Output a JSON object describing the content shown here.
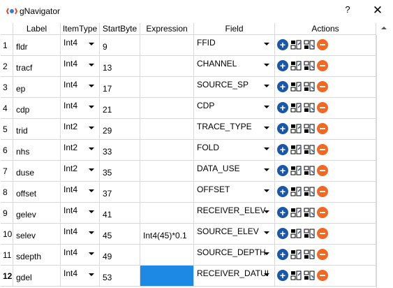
{
  "window": {
    "title": "gNavigator",
    "help_label": "?",
    "close_label": "✕"
  },
  "table": {
    "headers": [
      "Label",
      "ItemType",
      "StartByte",
      "Expression",
      "Field",
      "Actions"
    ],
    "rows": [
      {
        "num": "1",
        "label": "fldr",
        "type": "Int4",
        "start": "9",
        "expr": "",
        "field": "FFID"
      },
      {
        "num": "2",
        "label": "tracf",
        "type": "Int4",
        "start": "13",
        "expr": "",
        "field": "CHANNEL"
      },
      {
        "num": "3",
        "label": "ep",
        "type": "Int4",
        "start": "17",
        "expr": "",
        "field": "SOURCE_SP"
      },
      {
        "num": "4",
        "label": "cdp",
        "type": "Int4",
        "start": "21",
        "expr": "",
        "field": "CDP"
      },
      {
        "num": "5",
        "label": "trid",
        "type": "Int2",
        "start": "29",
        "expr": "",
        "field": "TRACE_TYPE"
      },
      {
        "num": "6",
        "label": "nhs",
        "type": "Int2",
        "start": "33",
        "expr": "",
        "field": "FOLD"
      },
      {
        "num": "7",
        "label": "duse",
        "type": "Int2",
        "start": "35",
        "expr": "",
        "field": "DATA_USE"
      },
      {
        "num": "8",
        "label": "offset",
        "type": "Int4",
        "start": "37",
        "expr": "",
        "field": "OFFSET"
      },
      {
        "num": "9",
        "label": "gelev",
        "type": "Int4",
        "start": "41",
        "expr": "",
        "field": "RECEIVER_ELEV"
      },
      {
        "num": "10",
        "label": "selev",
        "type": "Int4",
        "start": "45",
        "expr": "Int4(45)*0.1",
        "field": "SOURCE_ELEV"
      },
      {
        "num": "11",
        "label": "sdepth",
        "type": "Int4",
        "start": "49",
        "expr": "",
        "field": "SOURCE_DEPTH"
      },
      {
        "num": "12",
        "label": "gdel",
        "type": "Int4",
        "start": "53",
        "expr": "",
        "field": "RECEIVER_DATUI"
      }
    ]
  },
  "icons": {
    "add": "add-circle-icon",
    "insert_before": "insert-before-icon",
    "insert_after": "insert-after-icon",
    "remove": "remove-circle-icon"
  },
  "colors": {
    "selected": "#1e88e5",
    "add": "#1b57a8",
    "remove": "#f26722"
  }
}
